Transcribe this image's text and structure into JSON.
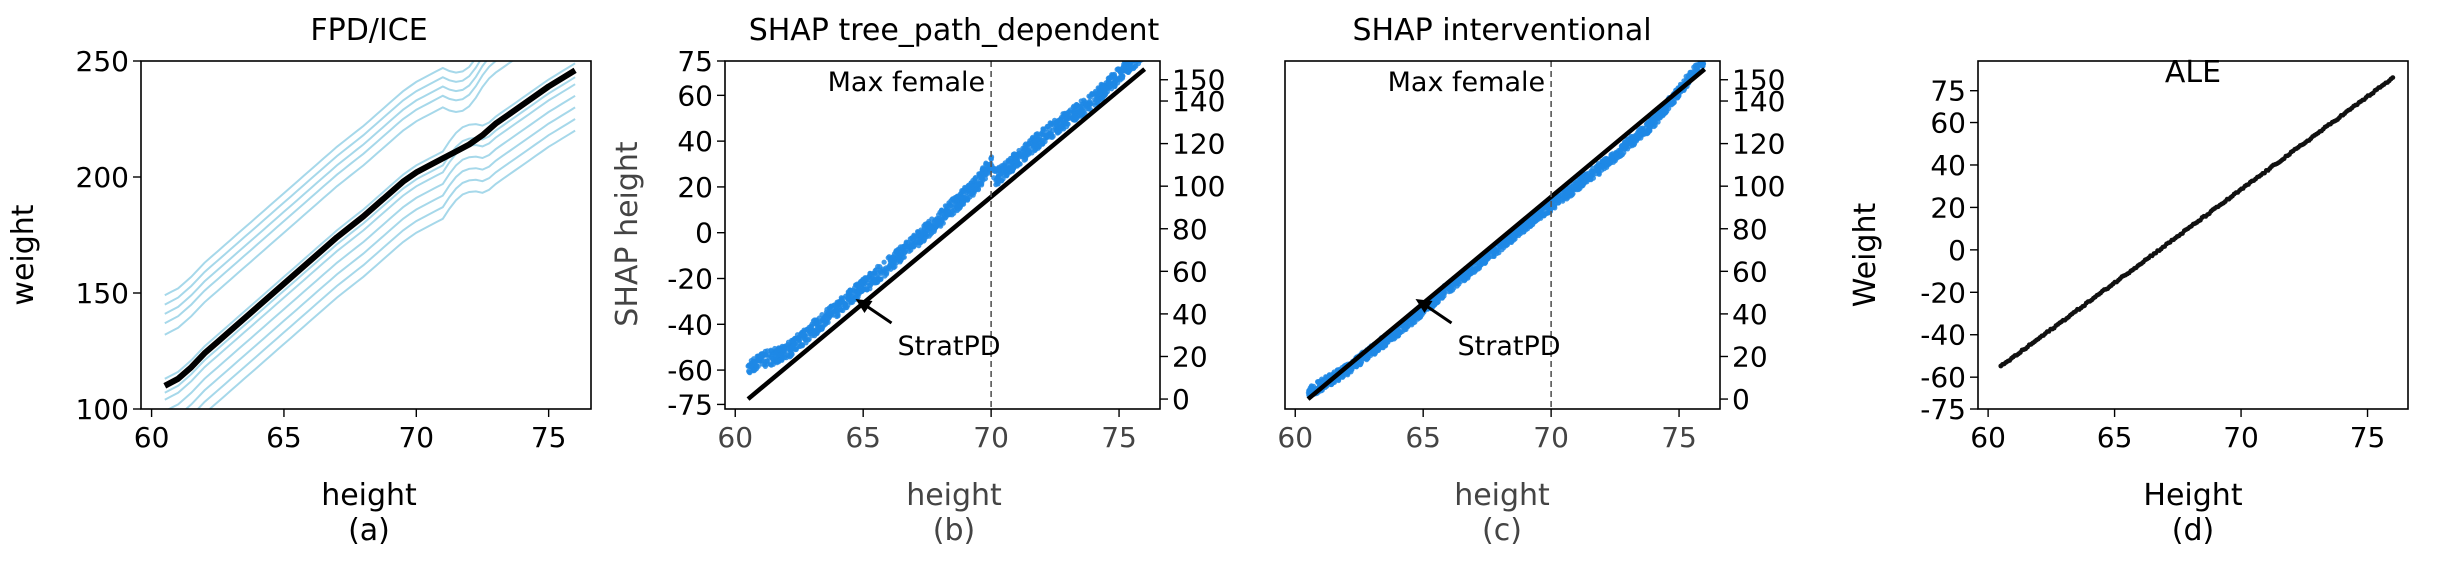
{
  "colors": {
    "ice_line": "#a6d8ea",
    "pd_line": "#000000",
    "shap_point": "#1f88e5",
    "stratpd_line": "#000000",
    "ale_point": "#111111",
    "axis": "#000000",
    "muted_text": "#444444"
  },
  "chart_data": [
    {
      "type": "line",
      "title": "FPD/ICE",
      "xlabel": "height",
      "ylabel": "weight",
      "caption": "(a)",
      "xlim": [
        59.6,
        76.6
      ],
      "ylim": [
        100,
        250
      ],
      "xticks": [
        60,
        65,
        70,
        75
      ],
      "yticks": [
        100,
        150,
        200,
        250
      ],
      "pd_curve": {
        "x": [
          60.5,
          61.0,
          61.5,
          62.0,
          62.5,
          63.0,
          64.0,
          65.0,
          66.0,
          67.0,
          68.0,
          69.0,
          69.5,
          70.0,
          70.5,
          71.0,
          71.5,
          72.0,
          72.5,
          73.0,
          73.5,
          74.0,
          75.0,
          76.0
        ],
        "y": [
          110,
          113,
          118,
          124,
          129,
          134,
          144,
          154,
          164,
          174,
          183,
          193,
          198,
          202,
          205,
          208,
          211,
          214,
          218,
          223,
          227,
          231,
          239,
          246
        ]
      },
      "ice_offsets_upper": [
        22,
        27,
        31,
        35,
        39
      ],
      "ice_offsets_lower": [
        -26,
        -21,
        -16,
        -11,
        -6,
        -3,
        3
      ],
      "ice_bump_after_x": 71
    },
    {
      "type": "scatter",
      "title": "SHAP tree_path_dependent",
      "xlabel": "height",
      "ylabel": "SHAP height",
      "caption": "(b)",
      "xlim": [
        59.6,
        76.6
      ],
      "ylim": [
        -77,
        75
      ],
      "xticks": [
        60,
        65,
        70,
        75
      ],
      "yticks": [
        -75,
        -60,
        -40,
        -20,
        0,
        20,
        40,
        60,
        75
      ],
      "y2lim": [
        -4.67,
        158.8
      ],
      "y2ticks": [
        0,
        20,
        40,
        60,
        80,
        100,
        120,
        140,
        150
      ],
      "vline_x": 70,
      "vline_label": "Max female",
      "annotation": "StratPD",
      "stratpd": {
        "x": [
          60.5,
          76.0
        ],
        "y": [
          0,
          155
        ]
      },
      "shap_band": {
        "x": [
          60.5,
          62.0,
          64.0,
          66.0,
          68.0,
          69.5,
          70.0,
          70.2,
          72.0,
          74.0,
          76.0
        ],
        "y": [
          -58,
          -52,
          -33,
          -14,
          6,
          22,
          31,
          24,
          42,
          58,
          80
        ],
        "spread": 7
      }
    },
    {
      "type": "scatter",
      "title": "SHAP interventional",
      "xlabel": "height",
      "caption": "(c)",
      "xlim": [
        59.6,
        76.6
      ],
      "ylim": [
        -77,
        75
      ],
      "xticks": [
        60,
        65,
        70,
        75
      ],
      "y2lim": [
        -4.67,
        158.8
      ],
      "y2ticks": [
        0,
        20,
        40,
        60,
        80,
        100,
        120,
        140,
        150
      ],
      "vline_x": 70,
      "vline_label": "Max female",
      "annotation": "StratPD",
      "stratpd": {
        "x": [
          60.5,
          76.0
        ],
        "y": [
          0,
          155
        ]
      },
      "shap_band": {
        "x": [
          60.5,
          62.0,
          64.0,
          66.0,
          68.0,
          69.5,
          70.0,
          72.0,
          74.0,
          76.0
        ],
        "y": [
          -70,
          -60,
          -43,
          -24,
          -6,
          8,
          12,
          29,
          48,
          76
        ],
        "spread": 5
      }
    },
    {
      "type": "scatter",
      "title": "ALE",
      "xlabel": "Height",
      "ylabel": "Weight",
      "caption": "(d)",
      "xlim": [
        59.6,
        76.6
      ],
      "ylim": [
        -75,
        89
      ],
      "xticks": [
        60,
        65,
        70,
        75
      ],
      "yticks": [
        -75,
        -60,
        -40,
        -20,
        0,
        20,
        40,
        60,
        75
      ],
      "ale_line": {
        "x": [
          60.5,
          76.0
        ],
        "y": [
          -55,
          81
        ]
      }
    }
  ]
}
